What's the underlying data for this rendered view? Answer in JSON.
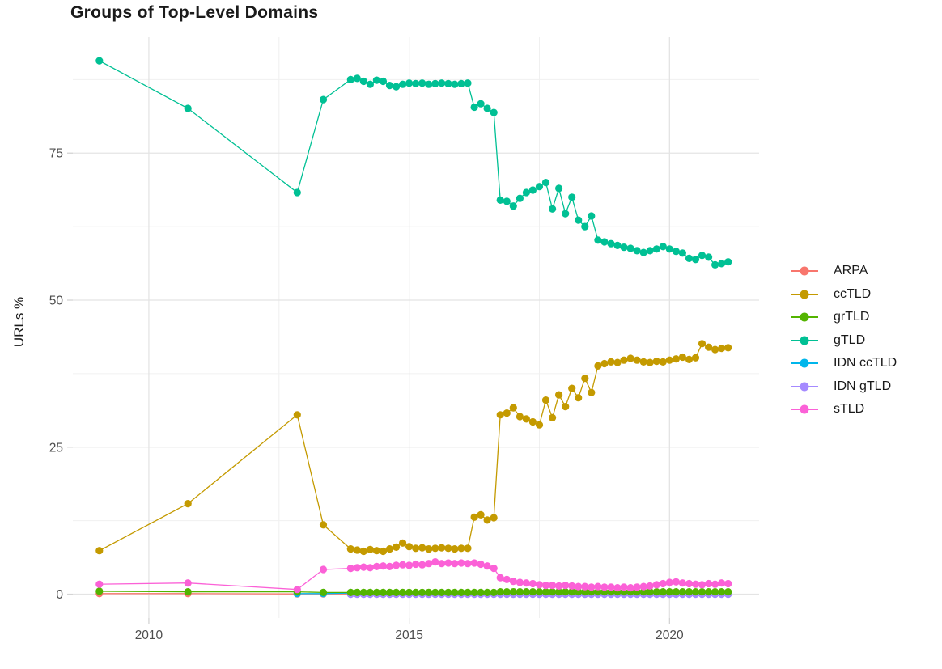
{
  "chart_data": {
    "type": "line",
    "title": "Groups of Top-Level Domains",
    "xlabel": "",
    "ylabel": "URLs %",
    "grid": "major and minor, light gray on white",
    "legend_position": "right",
    "xlim": [
      2008.54,
      2021.72
    ],
    "ylim": [
      -4.05,
      94.7
    ],
    "x_ticks": [
      {
        "value": 2010,
        "label": "2010"
      },
      {
        "value": 2015,
        "label": "2015"
      },
      {
        "value": 2020,
        "label": "2020"
      }
    ],
    "y_ticks": [
      {
        "value": 0,
        "label": "0"
      },
      {
        "value": 25,
        "label": "25"
      },
      {
        "value": 50,
        "label": "50"
      },
      {
        "value": 75,
        "label": "75"
      }
    ],
    "x_minor": [
      2012.5,
      2017.5
    ],
    "y_minor": [
      12.5,
      37.5,
      62.5,
      87.5
    ],
    "colors": {
      "major_grid": "#e4e4e4",
      "minor_grid": "#f0f0f0",
      "tick_mark": "#d4d4d4",
      "tick_text": "#4d4d4d",
      "title_text": "#1a1a1a"
    },
    "draw_order": [
      "ARPA",
      "IDN ccTLD",
      "IDN gTLD",
      "ccTLD",
      "gTLD",
      "grTLD",
      "sTLD"
    ],
    "x_sparse": [
      2009.05,
      2010.75,
      2012.85,
      2013.35
    ],
    "x_dense": [
      2013.875,
      2014,
      2014.125,
      2014.25,
      2014.375,
      2014.5,
      2014.625,
      2014.75,
      2014.875,
      2015,
      2015.125,
      2015.25,
      2015.375,
      2015.5,
      2015.625,
      2015.75,
      2015.875,
      2016,
      2016.125,
      2016.25,
      2016.375,
      2016.5,
      2016.625,
      2016.75,
      2016.875,
      2017,
      2017.125,
      2017.25,
      2017.375,
      2017.5,
      2017.625,
      2017.75,
      2017.875,
      2018,
      2018.125,
      2018.25,
      2018.375,
      2018.5,
      2018.625,
      2018.75,
      2018.875,
      2019,
      2019.125,
      2019.25,
      2019.375,
      2019.5,
      2019.625,
      2019.75,
      2019.875,
      2020,
      2020.125,
      2020.25,
      2020.375,
      2020.5,
      2020.625,
      2020.75,
      2020.875,
      2021,
      2021.125
    ],
    "series": [
      {
        "name": "ARPA",
        "color": "#F8766D",
        "y_sparse": [
          0.1,
          0.1,
          0.05,
          0.05
        ],
        "y_dense": 0.05
      },
      {
        "name": "ccTLD",
        "color": "#C49A00",
        "y_sparse": [
          7.4,
          15.4,
          30.5,
          11.8
        ],
        "y_dense": [
          7.7,
          7.5,
          7.3,
          7.6,
          7.4,
          7.3,
          7.7,
          8.0,
          8.7,
          8.1,
          7.8,
          7.9,
          7.7,
          7.8,
          7.9,
          7.8,
          7.7,
          7.8,
          7.8,
          13.1,
          13.5,
          12.6,
          13.0,
          30.5,
          30.8,
          31.7,
          30.2,
          29.8,
          29.3,
          28.8,
          33.0,
          30.0,
          33.9,
          31.9,
          35.0,
          33.4,
          36.7,
          34.3,
          38.8,
          39.2,
          39.5,
          39.4,
          39.8,
          40.1,
          39.8,
          39.5,
          39.4,
          39.6,
          39.5,
          39.8,
          40.0,
          40.3,
          39.9,
          40.2,
          42.6,
          42.0,
          41.6,
          41.8,
          41.9
        ]
      },
      {
        "name": "grTLD",
        "color": "#53B400",
        "y_sparse": [
          0.5,
          0.4,
          0.4,
          0.3
        ],
        "y_dense": [
          0.3,
          0.3,
          0.3,
          0.3,
          0.3,
          0.3,
          0.3,
          0.3,
          0.3,
          0.3,
          0.3,
          0.3,
          0.3,
          0.3,
          0.3,
          0.3,
          0.3,
          0.3,
          0.3,
          0.3,
          0.3,
          0.3,
          0.3,
          0.4,
          0.4,
          0.4,
          0.4,
          0.4,
          0.4,
          0.4,
          0.4,
          0.4,
          0.4,
          0.4,
          0.4,
          0.4,
          0.4,
          0.4,
          0.4,
          0.4,
          0.4,
          0.4,
          0.4,
          0.4,
          0.4,
          0.4,
          0.4,
          0.4,
          0.4,
          0.4,
          0.4,
          0.4,
          0.4,
          0.4,
          0.4,
          0.4,
          0.4,
          0.4,
          0.4
        ]
      },
      {
        "name": "gTLD",
        "color": "#00C094",
        "y_sparse": [
          90.7,
          82.6,
          68.3,
          84.1
        ],
        "y_dense": [
          87.5,
          87.7,
          87.2,
          86.7,
          87.4,
          87.2,
          86.5,
          86.3,
          86.7,
          86.9,
          86.8,
          86.9,
          86.7,
          86.8,
          86.9,
          86.8,
          86.7,
          86.8,
          86.9,
          82.8,
          83.4,
          82.6,
          81.9,
          67.0,
          66.8,
          66.0,
          67.3,
          68.3,
          68.7,
          69.3,
          70.0,
          65.5,
          69.0,
          64.7,
          67.5,
          63.6,
          62.5,
          64.3,
          60.2,
          59.9,
          59.6,
          59.3,
          59.0,
          58.8,
          58.4,
          58.1,
          58.4,
          58.7,
          59.1,
          58.7,
          58.3,
          58.0,
          57.1,
          56.9,
          57.6,
          57.3,
          56.0,
          56.2,
          56.5
        ]
      },
      {
        "name": "IDN ccTLD",
        "color": "#00B6EB",
        "y_sparse": [
          null,
          null,
          0.1,
          0.1
        ],
        "y_dense": [
          0.2,
          0.18,
          0.16,
          0.15,
          0.13,
          0.12,
          0.1,
          0.1,
          0.08,
          0.08,
          0.06,
          0.06,
          0.05,
          0.05,
          0.05,
          0.05,
          0.05,
          0.05,
          0.05,
          0.05,
          0.05,
          0.05,
          0.05,
          0.05,
          0.05,
          0.05,
          0.05,
          0.05,
          0.05,
          0.05,
          0.05,
          0.05,
          0.05,
          0.05,
          0.05,
          0.05,
          0.05,
          0.05,
          0.05,
          0.05,
          0.05,
          0.05,
          0.05,
          0.05,
          0.05,
          0.05,
          0.05,
          0.05,
          0.05,
          0.05,
          0.05,
          0.05,
          0.05,
          0.05,
          0.05,
          0.05,
          0.05,
          0.05,
          0.05
        ]
      },
      {
        "name": "IDN gTLD",
        "color": "#A58AFF",
        "y_sparse": [
          null,
          null,
          null,
          null
        ],
        "y_dense": 0.0
      },
      {
        "name": "sTLD",
        "color": "#FB61D7",
        "y_sparse": [
          1.7,
          1.9,
          0.8,
          4.2
        ],
        "y_dense": [
          4.4,
          4.5,
          4.6,
          4.5,
          4.7,
          4.8,
          4.7,
          4.9,
          5.0,
          4.9,
          5.1,
          5.0,
          5.2,
          5.5,
          5.2,
          5.3,
          5.2,
          5.3,
          5.2,
          5.3,
          5.1,
          4.8,
          4.4,
          2.8,
          2.5,
          2.2,
          2.0,
          1.9,
          1.8,
          1.6,
          1.5,
          1.5,
          1.4,
          1.5,
          1.4,
          1.3,
          1.3,
          1.2,
          1.3,
          1.2,
          1.2,
          1.1,
          1.2,
          1.1,
          1.2,
          1.3,
          1.4,
          1.6,
          1.8,
          2.0,
          2.1,
          1.9,
          1.8,
          1.7,
          1.6,
          1.8,
          1.7,
          1.9,
          1.8
        ]
      }
    ]
  }
}
